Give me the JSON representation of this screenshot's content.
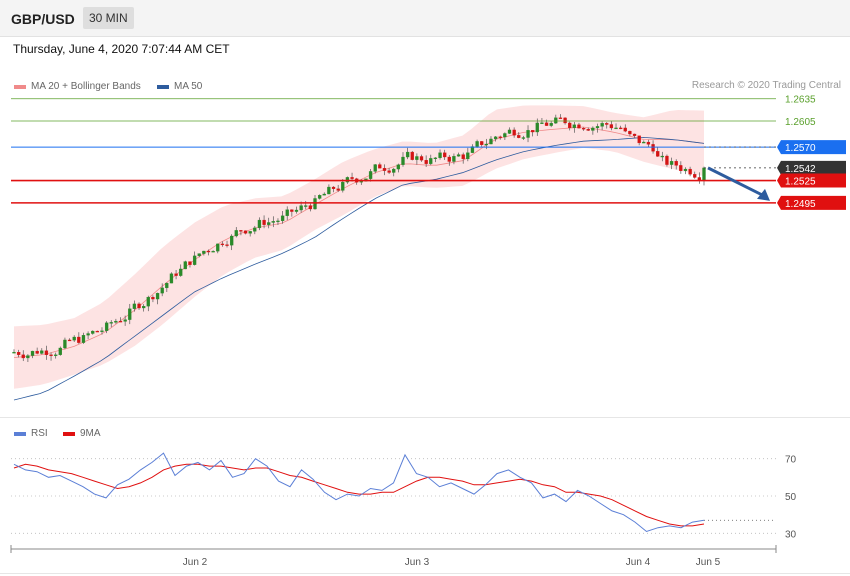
{
  "header": {
    "symbol": "GBP/USD",
    "timeframe": "30 MIN"
  },
  "date_text": "Thursday, June 4, 2020 7:07:44 AM CET",
  "legend": {
    "ma20": {
      "label": "MA 20 + Bollinger Bands",
      "color": "#f08a8a"
    },
    "ma50": {
      "label": "MA 50",
      "color": "#2e5c9e"
    }
  },
  "credit": "Research © 2020 Trading Central",
  "rsi_legend": {
    "rsi": {
      "label": "RSI",
      "color": "#5b7fd6"
    },
    "ma9": {
      "label": "9MA",
      "color": "#e01010"
    }
  },
  "chart_data": [
    {
      "type": "candlestick",
      "title": "GBP/USD",
      "timeframe": "30 MIN",
      "ylim": [
        1.223,
        1.264
      ],
      "x_tick_labels": [
        "Jun 2",
        "Jun 3",
        "Jun 4",
        "Jun 5"
      ],
      "levels": [
        {
          "label": "1.2635",
          "value": 1.2635,
          "kind": "resistance",
          "color": "#5aa02c"
        },
        {
          "label": "1.2605",
          "value": 1.2605,
          "kind": "resistance",
          "color": "#5aa02c"
        },
        {
          "label": "1.2570",
          "value": 1.257,
          "kind": "pivot",
          "color": "#1a6ff0"
        },
        {
          "label": "1.2542",
          "value": 1.2542,
          "kind": "last-price",
          "color": "#333333"
        },
        {
          "label": "1.2525",
          "value": 1.2525,
          "kind": "support",
          "color": "#e01010"
        },
        {
          "label": "1.2495",
          "value": 1.2495,
          "kind": "support",
          "color": "#e01010"
        }
      ],
      "projection": {
        "from": 1.2542,
        "to": 1.2495,
        "direction": "down",
        "color": "#2e5c9e"
      },
      "series": [
        {
          "name": "MA 20 + Bollinger Bands",
          "color": "#f08a8a",
          "values": [
            1.2287,
            1.2291,
            1.2302,
            1.232,
            1.235,
            1.2385,
            1.2418,
            1.2445,
            1.2461,
            1.2468,
            1.2492,
            1.2515,
            1.2535,
            1.2548,
            1.2545,
            1.2552,
            1.258,
            1.259,
            1.2594,
            1.2597,
            1.259,
            1.258,
            1.258,
            1.2575
          ]
        },
        {
          "name": "MA 50",
          "color": "#2e5c9e",
          "values": [
            1.223,
            1.224,
            1.2262,
            1.2285,
            1.2315,
            1.2345,
            1.2375,
            1.2395,
            1.2412,
            1.2428,
            1.2448,
            1.2475,
            1.25,
            1.252,
            1.2526,
            1.2536,
            1.2552,
            1.2564,
            1.2572,
            1.2578,
            1.258,
            1.2583,
            1.258,
            1.2575
          ]
        }
      ]
    },
    {
      "type": "line",
      "title": "RSI",
      "ylim": [
        20,
        80
      ],
      "y_tick_labels": [
        "70",
        "50",
        "30"
      ],
      "levels": [
        70,
        50,
        30
      ],
      "series": [
        {
          "name": "RSI",
          "color": "#5b7fd6",
          "values": [
            67,
            64,
            63,
            60,
            61,
            58,
            55,
            51,
            49,
            56,
            59,
            64,
            68,
            73,
            61,
            66,
            68,
            64,
            69,
            60,
            62,
            70,
            66,
            58,
            55,
            64,
            59,
            52,
            48,
            51,
            50,
            54,
            53,
            57,
            72,
            62,
            60,
            55,
            57,
            54,
            51,
            56,
            62,
            64,
            60,
            57,
            49,
            51,
            47,
            53,
            50,
            46,
            42,
            40,
            36,
            31,
            33,
            34,
            33,
            36,
            37
          ]
        },
        {
          "name": "9MA",
          "color": "#e01010",
          "values": [
            65,
            67,
            66,
            64,
            63,
            62,
            60,
            58,
            56,
            54,
            55,
            57,
            60,
            64,
            66,
            67,
            67,
            66,
            66,
            65,
            64,
            65,
            65,
            63,
            61,
            60,
            58,
            56,
            54,
            52,
            51,
            51,
            52,
            52,
            55,
            58,
            60,
            60,
            59,
            58,
            56,
            56,
            57,
            58,
            59,
            58,
            56,
            55,
            52,
            52,
            51,
            50,
            48,
            45,
            42,
            39,
            37,
            35,
            34,
            34,
            35
          ]
        }
      ]
    }
  ]
}
